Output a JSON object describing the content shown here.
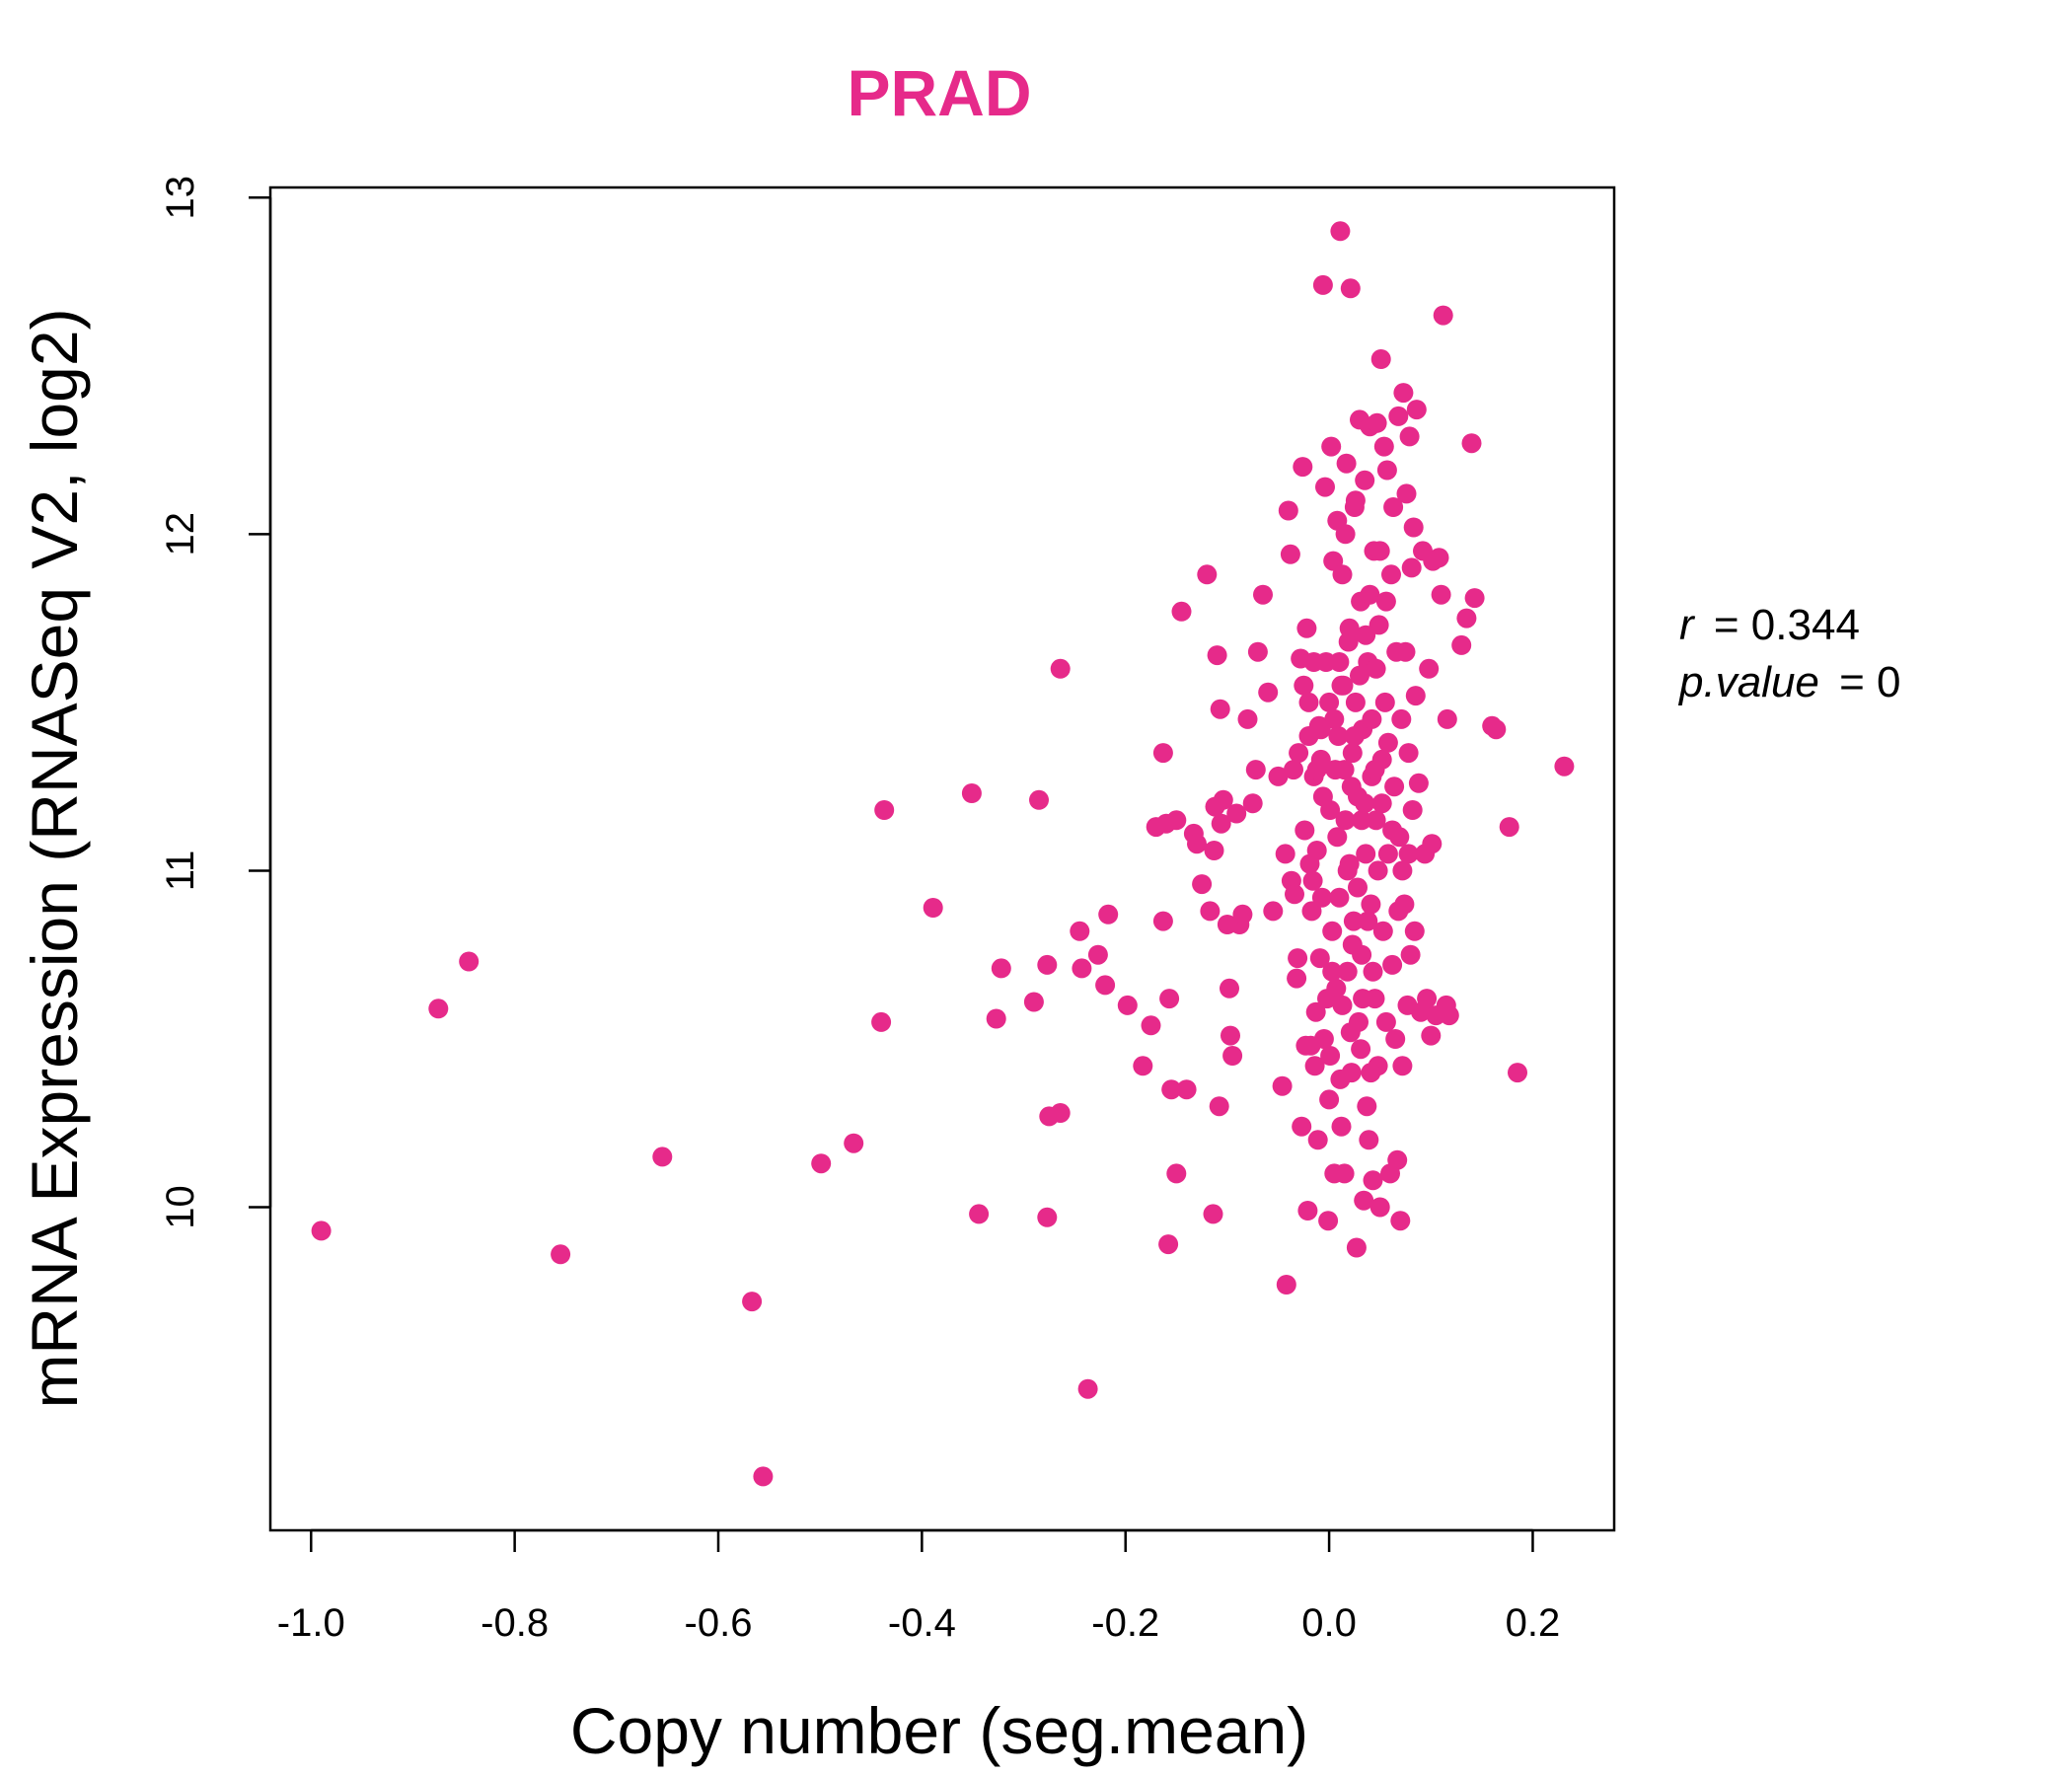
{
  "chart_data": {
    "type": "scatter",
    "title": "PRAD",
    "xlabel": "Copy number (seg.mean)",
    "ylabel": "mRNA Expression (RNASeq V2, log2)",
    "xlim": [
      -1.04,
      0.28
    ],
    "ylim": [
      9.04,
      13.03
    ],
    "xticks": [
      -1.0,
      -0.8,
      -0.6,
      -0.4,
      -0.2,
      0.0,
      0.2
    ],
    "xtick_labels": [
      "-1.0",
      "-0.8",
      "-0.6",
      "-0.4",
      "-0.2",
      "0.0",
      "0.2"
    ],
    "yticks": [
      10,
      11,
      12,
      13
    ],
    "ytick_labels": [
      "10",
      "11",
      "12",
      "13"
    ],
    "grid": false,
    "point_color": "#e62a8a",
    "title_color": "#e62a8a",
    "annotations": {
      "r_label": "r",
      "r_eq": "= 0.344",
      "p_label": "p.value",
      "p_eq": "= 0"
    },
    "points": [
      [
        -0.99,
        9.93
      ],
      [
        -0.875,
        10.59
      ],
      [
        -0.845,
        10.73
      ],
      [
        -0.755,
        9.86
      ],
      [
        -0.655,
        10.15
      ],
      [
        -0.567,
        9.72
      ],
      [
        -0.556,
        9.2
      ],
      [
        -0.499,
        10.13
      ],
      [
        -0.467,
        10.19
      ],
      [
        -0.44,
        10.55
      ],
      [
        -0.437,
        11.18
      ],
      [
        -0.389,
        10.89
      ],
      [
        -0.351,
        11.23
      ],
      [
        -0.344,
        9.98
      ],
      [
        -0.327,
        10.56
      ],
      [
        -0.322,
        10.71
      ],
      [
        -0.29,
        10.61
      ],
      [
        -0.285,
        11.21
      ],
      [
        -0.277,
        9.97
      ],
      [
        -0.277,
        10.72
      ],
      [
        -0.275,
        10.27
      ],
      [
        -0.264,
        10.28
      ],
      [
        -0.264,
        11.6
      ],
      [
        -0.245,
        10.82
      ],
      [
        -0.243,
        10.71
      ],
      [
        -0.237,
        9.46
      ],
      [
        -0.227,
        10.75
      ],
      [
        -0.22,
        10.66
      ],
      [
        -0.217,
        10.87
      ],
      [
        -0.198,
        10.6
      ],
      [
        -0.183,
        10.42
      ],
      [
        -0.175,
        10.54
      ],
      [
        -0.17,
        11.13
      ],
      [
        -0.163,
        10.85
      ],
      [
        -0.163,
        11.35
      ],
      [
        -0.16,
        11.14
      ],
      [
        -0.158,
        9.89
      ],
      [
        -0.157,
        10.62
      ],
      [
        -0.155,
        10.35
      ],
      [
        -0.15,
        11.15
      ],
      [
        -0.15,
        10.1
      ],
      [
        -0.145,
        11.77
      ],
      [
        -0.14,
        10.35
      ],
      [
        -0.133,
        11.11
      ],
      [
        -0.13,
        11.08
      ],
      [
        -0.125,
        10.96
      ],
      [
        -0.12,
        11.88
      ],
      [
        -0.117,
        10.88
      ],
      [
        -0.114,
        9.98
      ],
      [
        -0.113,
        11.06
      ],
      [
        -0.112,
        11.19
      ],
      [
        -0.11,
        11.64
      ],
      [
        -0.108,
        10.3
      ],
      [
        -0.107,
        11.48
      ],
      [
        -0.106,
        11.14
      ],
      [
        -0.104,
        11.21
      ],
      [
        -0.1,
        10.84
      ],
      [
        -0.098,
        10.65
      ],
      [
        -0.097,
        10.51
      ],
      [
        -0.095,
        10.45
      ],
      [
        -0.091,
        11.17
      ],
      [
        -0.088,
        10.84
      ],
      [
        -0.085,
        10.87
      ],
      [
        -0.08,
        11.45
      ],
      [
        -0.075,
        11.2
      ],
      [
        -0.072,
        11.3
      ],
      [
        -0.07,
        11.65
      ],
      [
        -0.065,
        11.82
      ],
      [
        -0.06,
        11.53
      ],
      [
        -0.055,
        10.88
      ],
      [
        -0.05,
        11.28
      ],
      [
        -0.046,
        10.36
      ],
      [
        -0.043,
        11.05
      ],
      [
        -0.042,
        9.77
      ],
      [
        -0.04,
        12.07
      ],
      [
        -0.038,
        11.94
      ],
      [
        -0.037,
        10.97
      ],
      [
        -0.035,
        11.3
      ],
      [
        -0.034,
        10.93
      ],
      [
        -0.032,
        10.68
      ],
      [
        -0.031,
        10.74
      ],
      [
        -0.03,
        11.35
      ],
      [
        -0.028,
        11.63
      ],
      [
        -0.027,
        10.24
      ],
      [
        -0.026,
        12.2
      ],
      [
        -0.025,
        11.55
      ],
      [
        -0.024,
        11.12
      ],
      [
        -0.023,
        10.48
      ],
      [
        -0.022,
        11.72
      ],
      [
        -0.021,
        9.99
      ],
      [
        -0.02,
        11.4
      ],
      [
        -0.019,
        11.02
      ],
      [
        -0.018,
        10.48
      ],
      [
        -0.017,
        10.88
      ],
      [
        -0.016,
        10.97
      ],
      [
        -0.015,
        11.28
      ],
      [
        -0.014,
        10.42
      ],
      [
        -0.013,
        10.58
      ],
      [
        -0.012,
        11.06
      ],
      [
        -0.011,
        10.2
      ],
      [
        -0.01,
        11.43
      ],
      [
        -0.009,
        10.74
      ],
      [
        -0.008,
        11.33
      ],
      [
        -0.007,
        10.92
      ],
      [
        -0.006,
        12.74
      ],
      [
        -0.005,
        10.5
      ],
      [
        -0.004,
        12.14
      ],
      [
        -0.003,
        11.62
      ],
      [
        -0.002,
        10.62
      ],
      [
        -0.001,
        9.96
      ],
      [
        0.0,
        11.5
      ],
      [
        0.0,
        10.32
      ],
      [
        0.001,
        11.18
      ],
      [
        0.002,
        12.26
      ],
      [
        0.003,
        10.82
      ],
      [
        0.004,
        11.92
      ],
      [
        0.005,
        10.1
      ],
      [
        0.006,
        11.3
      ],
      [
        0.007,
        10.65
      ],
      [
        0.008,
        12.04
      ],
      [
        0.009,
        11.4
      ],
      [
        0.01,
        10.92
      ],
      [
        0.011,
        12.9
      ],
      [
        0.012,
        10.24
      ],
      [
        0.013,
        11.88
      ],
      [
        0.014,
        11.55
      ],
      [
        0.015,
        10.1
      ],
      [
        0.016,
        11.15
      ],
      [
        0.017,
        12.21
      ],
      [
        0.018,
        10.7
      ],
      [
        0.019,
        11.68
      ],
      [
        0.02,
        11.02
      ],
      [
        0.021,
        12.73
      ],
      [
        0.022,
        10.4
      ],
      [
        0.023,
        11.35
      ],
      [
        0.024,
        10.85
      ],
      [
        0.025,
        12.08
      ],
      [
        0.026,
        11.5
      ],
      [
        0.027,
        9.88
      ],
      [
        0.028,
        11.22
      ],
      [
        0.029,
        10.55
      ],
      [
        0.03,
        12.34
      ],
      [
        0.031,
        11.8
      ],
      [
        0.032,
        10.75
      ],
      [
        0.033,
        11.42
      ],
      [
        0.034,
        10.02
      ],
      [
        0.035,
        12.16
      ],
      [
        0.036,
        11.05
      ],
      [
        0.037,
        10.3
      ],
      [
        0.038,
        11.62
      ],
      [
        0.039,
        10.2
      ],
      [
        0.04,
        12.32
      ],
      [
        0.041,
        10.9
      ],
      [
        0.042,
        11.28
      ],
      [
        0.043,
        10.08
      ],
      [
        0.044,
        11.95
      ],
      [
        0.045,
        10.62
      ],
      [
        0.046,
        11.15
      ],
      [
        0.047,
        12.33
      ],
      [
        0.048,
        10.42
      ],
      [
        0.049,
        11.73
      ],
      [
        0.05,
        10.0
      ],
      [
        0.051,
        12.52
      ],
      [
        0.052,
        11.33
      ],
      [
        0.053,
        10.82
      ],
      [
        0.054,
        12.26
      ],
      [
        0.055,
        11.5
      ],
      [
        0.056,
        10.55
      ],
      [
        0.057,
        12.19
      ],
      [
        0.058,
        11.05
      ],
      [
        0.06,
        10.1
      ],
      [
        0.061,
        11.88
      ],
      [
        0.062,
        10.72
      ],
      [
        0.063,
        12.08
      ],
      [
        0.064,
        11.25
      ],
      [
        0.065,
        10.5
      ],
      [
        0.066,
        11.65
      ],
      [
        0.067,
        10.14
      ],
      [
        0.068,
        12.35
      ],
      [
        0.069,
        11.1
      ],
      [
        0.07,
        9.96
      ],
      [
        0.071,
        11.45
      ],
      [
        0.072,
        10.42
      ],
      [
        0.073,
        12.42
      ],
      [
        0.074,
        10.9
      ],
      [
        0.075,
        11.65
      ],
      [
        0.076,
        12.12
      ],
      [
        0.077,
        10.6
      ],
      [
        0.078,
        11.35
      ],
      [
        0.079,
        12.29
      ],
      [
        0.08,
        10.75
      ],
      [
        0.081,
        11.9
      ],
      [
        0.082,
        11.18
      ],
      [
        0.083,
        12.02
      ],
      [
        0.084,
        10.82
      ],
      [
        0.085,
        11.52
      ],
      [
        0.086,
        12.37
      ],
      [
        0.088,
        11.26
      ],
      [
        0.09,
        10.58
      ],
      [
        0.092,
        11.95
      ],
      [
        0.094,
        11.05
      ],
      [
        0.096,
        10.62
      ],
      [
        0.098,
        11.6
      ],
      [
        0.1,
        10.51
      ],
      [
        0.101,
        11.08
      ],
      [
        0.102,
        11.92
      ],
      [
        0.105,
        10.57
      ],
      [
        0.108,
        11.93
      ],
      [
        0.11,
        11.82
      ],
      [
        0.112,
        12.65
      ],
      [
        0.115,
        10.6
      ],
      [
        0.116,
        11.45
      ],
      [
        0.118,
        10.57
      ],
      [
        0.13,
        11.67
      ],
      [
        0.135,
        11.75
      ],
      [
        0.14,
        12.27
      ],
      [
        0.143,
        11.81
      ],
      [
        0.16,
        11.43
      ],
      [
        0.164,
        11.42
      ],
      [
        0.177,
        11.13
      ],
      [
        0.185,
        10.4
      ],
      [
        0.231,
        11.31
      ],
      [
        0.005,
        11.45
      ],
      [
        0.015,
        11.3
      ],
      [
        0.025,
        11.4
      ],
      [
        0.035,
        11.2
      ],
      [
        0.045,
        11.3
      ],
      [
        0.012,
        11.55
      ],
      [
        0.022,
        11.25
      ],
      [
        0.032,
        11.15
      ],
      [
        0.042,
        11.45
      ],
      [
        0.052,
        11.2
      ],
      [
        0.008,
        11.1
      ],
      [
        0.018,
        11.0
      ],
      [
        0.028,
        10.95
      ],
      [
        0.038,
        10.85
      ],
      [
        0.048,
        11.0
      ],
      [
        0.003,
        10.7
      ],
      [
        0.013,
        10.6
      ],
      [
        0.023,
        10.78
      ],
      [
        0.033,
        10.62
      ],
      [
        0.043,
        10.7
      ],
      [
        -0.006,
        11.22
      ],
      [
        -0.012,
        11.3
      ],
      [
        0.058,
        11.38
      ],
      [
        0.062,
        11.12
      ],
      [
        0.068,
        10.88
      ],
      [
        0.01,
        11.62
      ],
      [
        0.02,
        11.72
      ],
      [
        0.03,
        11.58
      ],
      [
        0.04,
        11.82
      ],
      [
        0.05,
        11.95
      ],
      [
        0.016,
        12.0
      ],
      [
        0.026,
        12.1
      ],
      [
        0.036,
        11.7
      ],
      [
        0.046,
        11.6
      ],
      [
        0.056,
        11.8
      ],
      [
        0.001,
        10.45
      ],
      [
        0.011,
        10.38
      ],
      [
        0.021,
        10.52
      ],
      [
        0.031,
        10.47
      ],
      [
        0.041,
        10.4
      ],
      [
        -0.02,
        11.5
      ],
      [
        -0.015,
        11.62
      ],
      [
        -0.008,
        11.42
      ],
      [
        0.072,
        11.0
      ],
      [
        0.078,
        11.05
      ]
    ]
  }
}
